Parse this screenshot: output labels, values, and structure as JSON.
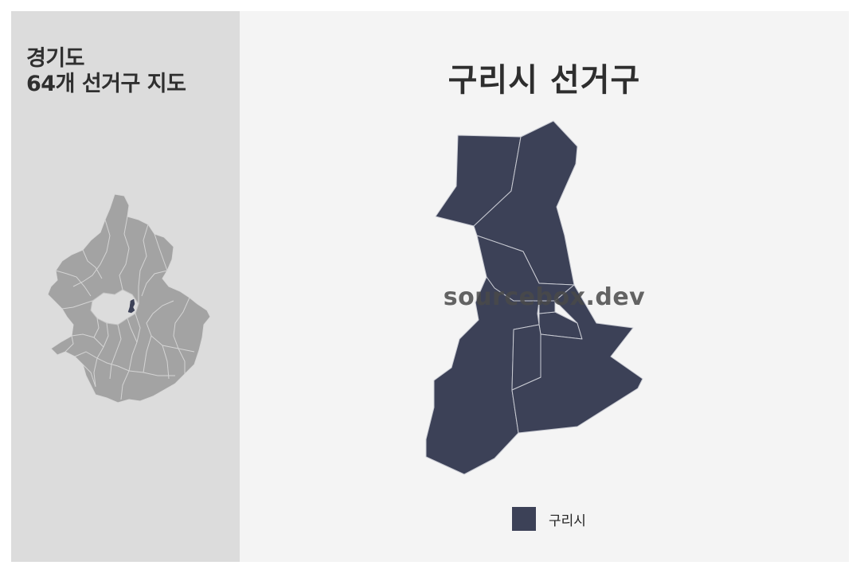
{
  "sidebar": {
    "title_line1": "경기도",
    "title_line2": "64개 선거구 지도"
  },
  "main": {
    "title": "구리시 선거구",
    "watermark": "sourcebox.dev"
  },
  "legend": {
    "items": [
      {
        "label": "구리시",
        "color": "#3c4157"
      }
    ]
  },
  "colors": {
    "highlight": "#3c4157",
    "province_fill": "#a3a3a3",
    "sidebar_bg": "#dcdcdc",
    "main_bg": "#f4f4f4"
  }
}
